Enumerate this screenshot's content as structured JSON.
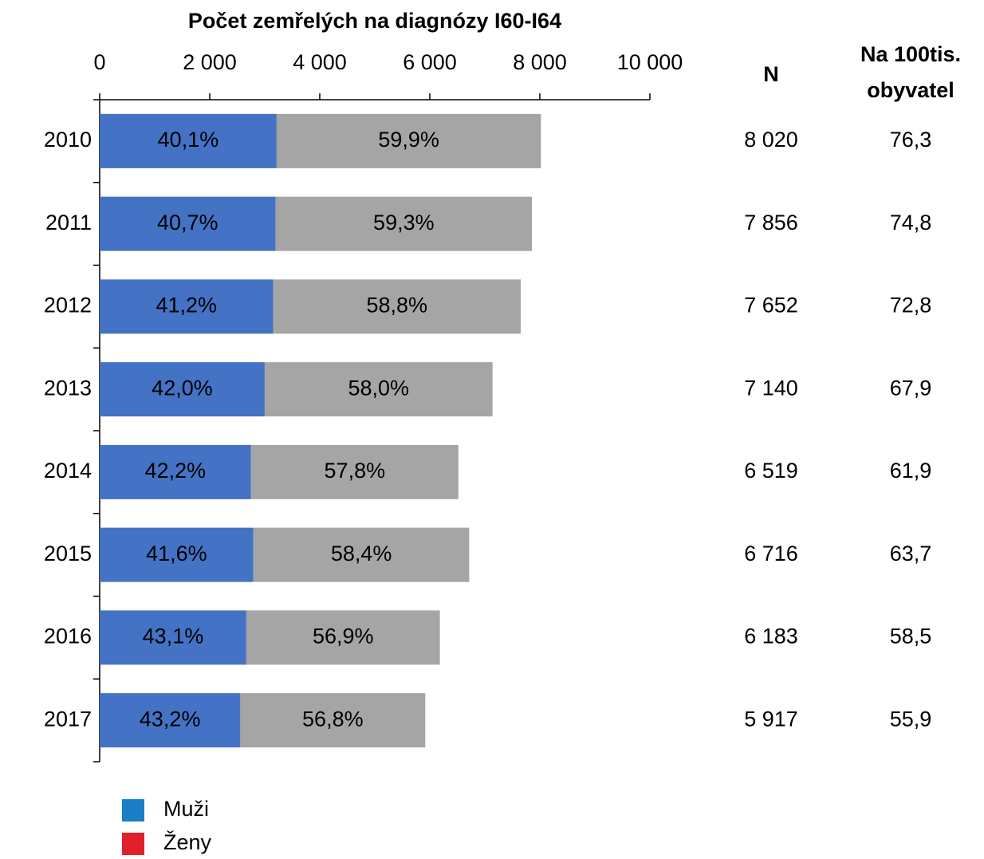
{
  "chart_data": {
    "type": "stacked-bar-horizontal",
    "title": "Počet zemřelých na diagnózy I60-I64",
    "categories": [
      "2010",
      "2011",
      "2012",
      "2013",
      "2014",
      "2015",
      "2016",
      "2017"
    ],
    "series": [
      {
        "name": "Muži",
        "color": "#4472c4",
        "legend_color": "#1a7ec6",
        "values": [
          3216,
          3197,
          3153,
          2999,
          2751,
          2794,
          2665,
          2556
        ],
        "value_labels": [
          "40,1%",
          "40,7%",
          "41,2%",
          "42,0%",
          "42,2%",
          "41,6%",
          "43,1%",
          "43,2%"
        ]
      },
      {
        "name": "Ženy",
        "color": "#a5a5a5",
        "legend_color": "#e0202a",
        "values": [
          4804,
          4659,
          4499,
          4141,
          3768,
          3922,
          3518,
          3361
        ],
        "value_labels": [
          "59,9%",
          "59,3%",
          "58,8%",
          "58,0%",
          "57,8%",
          "58,4%",
          "56,9%",
          "56,8%"
        ]
      }
    ],
    "xlim": [
      0,
      10000
    ],
    "xticks": [
      0,
      {
        "value": 2000,
        "label": "2 000"
      },
      {
        "value": 4000,
        "label": "4 000"
      },
      {
        "value": 6000,
        "label": "6 000"
      },
      {
        "value": 8000,
        "label": "8 000"
      },
      {
        "value": 10000,
        "label": "10 000"
      }
    ],
    "grid": false,
    "legend": "bottom-left",
    "table": {
      "headers": [
        [
          "N"
        ],
        [
          "Na 100tis.",
          "obyvatel"
        ]
      ],
      "columns": [
        [
          "8 020",
          "7 856",
          "7 652",
          "7 140",
          "6 519",
          "6 716",
          "6 183",
          "5 917"
        ],
        [
          "76,3",
          "74,8",
          "72,8",
          "67,9",
          "61,9",
          "63,7",
          "58,5",
          "55,9"
        ]
      ]
    }
  }
}
